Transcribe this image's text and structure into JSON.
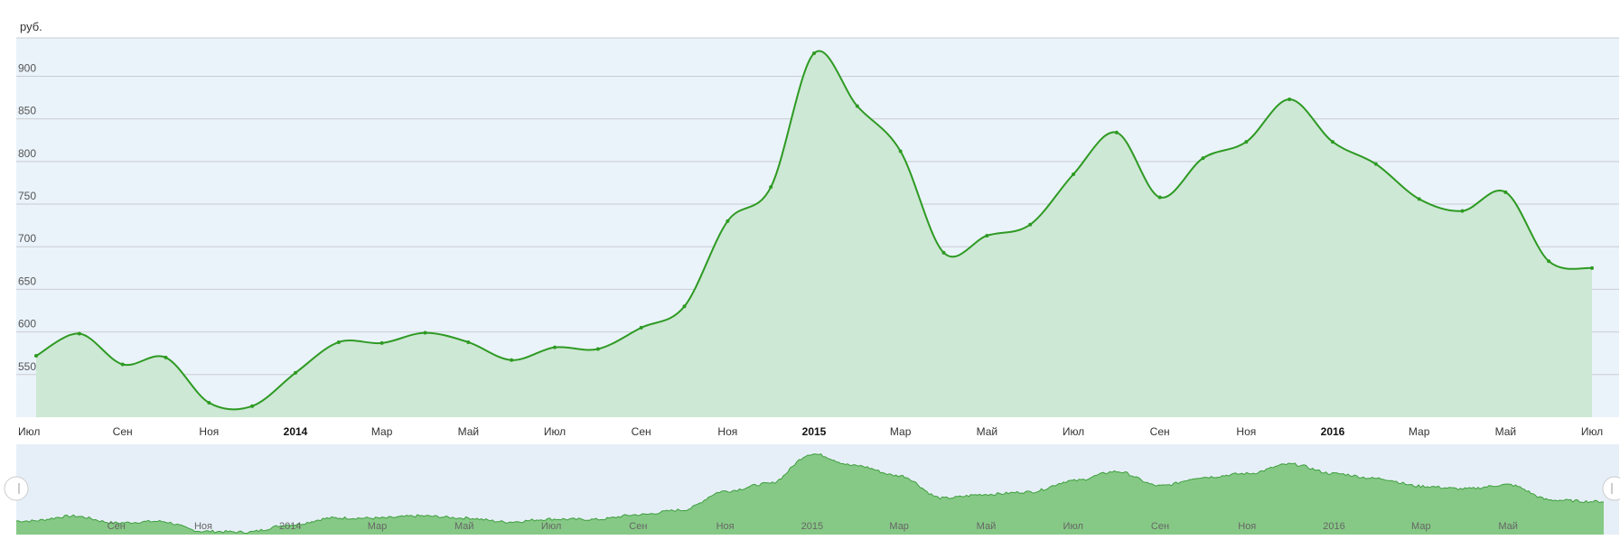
{
  "chart_data": {
    "type": "area",
    "unit_label": "руб.",
    "ylabel": "руб.",
    "ylim": [
      500,
      945
    ],
    "y_ticks": [
      550,
      600,
      650,
      700,
      750,
      800,
      850,
      900
    ],
    "grid": true,
    "colors": {
      "line": "#2e9a23",
      "fill": "#cde8d4",
      "plot_bg": "#eaf3fa",
      "grid": "#c8ccd0",
      "nav_fill": "#86c986",
      "nav_line": "#3f9e3f",
      "nav_bg": "#e6eff7"
    },
    "x_ticks": [
      {
        "label": "Июл",
        "t": 0.0,
        "year": false
      },
      {
        "label": "Сен",
        "t": 2.0,
        "year": false
      },
      {
        "label": "Ноя",
        "t": 4.0,
        "year": false
      },
      {
        "label": "2014",
        "t": 6.0,
        "year": true
      },
      {
        "label": "Мар",
        "t": 8.0,
        "year": false
      },
      {
        "label": "Май",
        "t": 10.0,
        "year": false
      },
      {
        "label": "Июл",
        "t": 12.0,
        "year": false
      },
      {
        "label": "Сен",
        "t": 14.0,
        "year": false
      },
      {
        "label": "Ноя",
        "t": 16.0,
        "year": false
      },
      {
        "label": "2015",
        "t": 18.0,
        "year": true
      },
      {
        "label": "Мар",
        "t": 20.0,
        "year": false
      },
      {
        "label": "Май",
        "t": 22.0,
        "year": false
      },
      {
        "label": "Июл",
        "t": 24.0,
        "year": false
      },
      {
        "label": "Сен",
        "t": 26.0,
        "year": false
      },
      {
        "label": "Ноя",
        "t": 28.0,
        "year": false
      },
      {
        "label": "2016",
        "t": 30.0,
        "year": true
      },
      {
        "label": "Мар",
        "t": 32.0,
        "year": false
      },
      {
        "label": "Май",
        "t": 34.0,
        "year": false
      },
      {
        "label": "Июл",
        "t": 36.0,
        "year": false
      }
    ],
    "series": [
      {
        "x": [
          "2013-07-01",
          "2013-08-01",
          "2013-09-01",
          "2013-10-01",
          "2013-11-01",
          "2013-12-01",
          "2014-01-01",
          "2014-02-01",
          "2014-03-01",
          "2014-04-01",
          "2014-05-01",
          "2014-06-01",
          "2014-07-01",
          "2014-08-01",
          "2014-09-01",
          "2014-10-01",
          "2014-11-01",
          "2014-12-01",
          "2015-01-01",
          "2015-02-01",
          "2015-03-01",
          "2015-04-01",
          "2015-05-01",
          "2015-06-01",
          "2015-07-01",
          "2015-08-01",
          "2015-09-01",
          "2015-10-01",
          "2015-11-01",
          "2015-12-01",
          "2016-01-01",
          "2016-02-01",
          "2016-03-01",
          "2016-04-01",
          "2016-05-01",
          "2016-06-01",
          "2016-07-01"
        ],
        "values": [
          572,
          598,
          562,
          570,
          517,
          513,
          552,
          588,
          587,
          599,
          588,
          567,
          582,
          580,
          605,
          630,
          730,
          770,
          927,
          865,
          812,
          693,
          713,
          726,
          785,
          834,
          758,
          804,
          823,
          873,
          823,
          797,
          756,
          742,
          764,
          683,
          675
        ]
      }
    ],
    "navigator": {
      "x_ticks": [
        {
          "label": "Сен",
          "t": 2.0
        },
        {
          "label": "Ноя",
          "t": 4.0
        },
        {
          "label": "2014",
          "t": 6.0
        },
        {
          "label": "Мар",
          "t": 8.0
        },
        {
          "label": "Май",
          "t": 10.0
        },
        {
          "label": "Июл",
          "t": 12.0
        },
        {
          "label": "Сен",
          "t": 14.0
        },
        {
          "label": "Ноя",
          "t": 16.0
        },
        {
          "label": "2015",
          "t": 18.0
        },
        {
          "label": "Мар",
          "t": 20.0
        },
        {
          "label": "Май",
          "t": 22.0
        },
        {
          "label": "Июл",
          "t": 24.0
        },
        {
          "label": "Сен",
          "t": 26.0
        },
        {
          "label": "Ноя",
          "t": 28.0
        },
        {
          "label": "2016",
          "t": 30.0
        },
        {
          "label": "Мар",
          "t": 32.0
        },
        {
          "label": "Май",
          "t": 34.0
        }
      ]
    }
  }
}
